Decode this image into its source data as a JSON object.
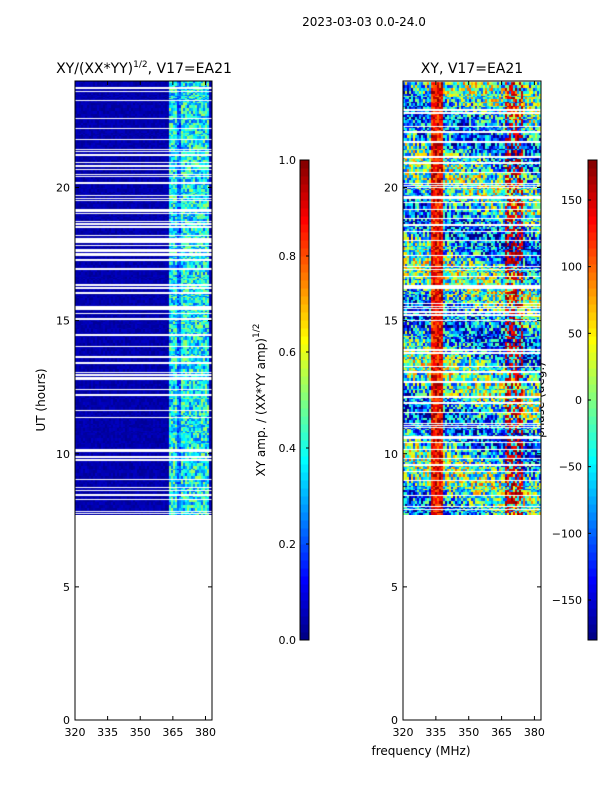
{
  "suptitle": "2023-03-03 0.0-24.0",
  "shared": {
    "ylabel": "UT (hours)",
    "xlabel": "frequency (MHz)"
  },
  "chart_data": [
    {
      "type": "heatmap",
      "title": "XY/(XX*YY)^1/2, V17=EA21",
      "title_main": "XY/(XX*YY)",
      "title_exp": "1/2",
      "title_rest": ", V17=EA21",
      "xlim": [
        320,
        383
      ],
      "ylim": [
        0,
        24
      ],
      "xticks": [
        320,
        335,
        350,
        365,
        380
      ],
      "yticks": [
        0,
        5,
        10,
        15,
        20
      ],
      "data_start_ut": 7.7,
      "colorbar": {
        "label": "XY amp. / (XX*YY amp)^1/2",
        "label_main": "XY amp. / (XX*YY amp)",
        "label_exp": "1/2",
        "range": [
          0.0,
          1.0
        ],
        "ticks": [
          "0.0",
          "0.2",
          "0.4",
          "0.6",
          "0.8",
          "1.0"
        ],
        "tick_values": [
          0.0,
          0.2,
          0.4,
          0.6,
          0.8,
          1.0
        ]
      }
    },
    {
      "type": "heatmap",
      "title": "XY, V17=EA21",
      "xlim": [
        320,
        383
      ],
      "ylim": [
        0,
        24
      ],
      "xticks": [
        320,
        335,
        350,
        365,
        380
      ],
      "yticks": [
        0,
        5,
        10,
        15,
        20
      ],
      "data_start_ut": 7.7,
      "colorbar": {
        "label": "phase (deg.)",
        "range": [
          -180,
          180
        ],
        "ticks": [
          "−150",
          "−100",
          "−50",
          "0",
          "50",
          "100",
          "150"
        ],
        "tick_values": [
          -150,
          -100,
          -50,
          0,
          50,
          100,
          150
        ]
      }
    }
  ]
}
